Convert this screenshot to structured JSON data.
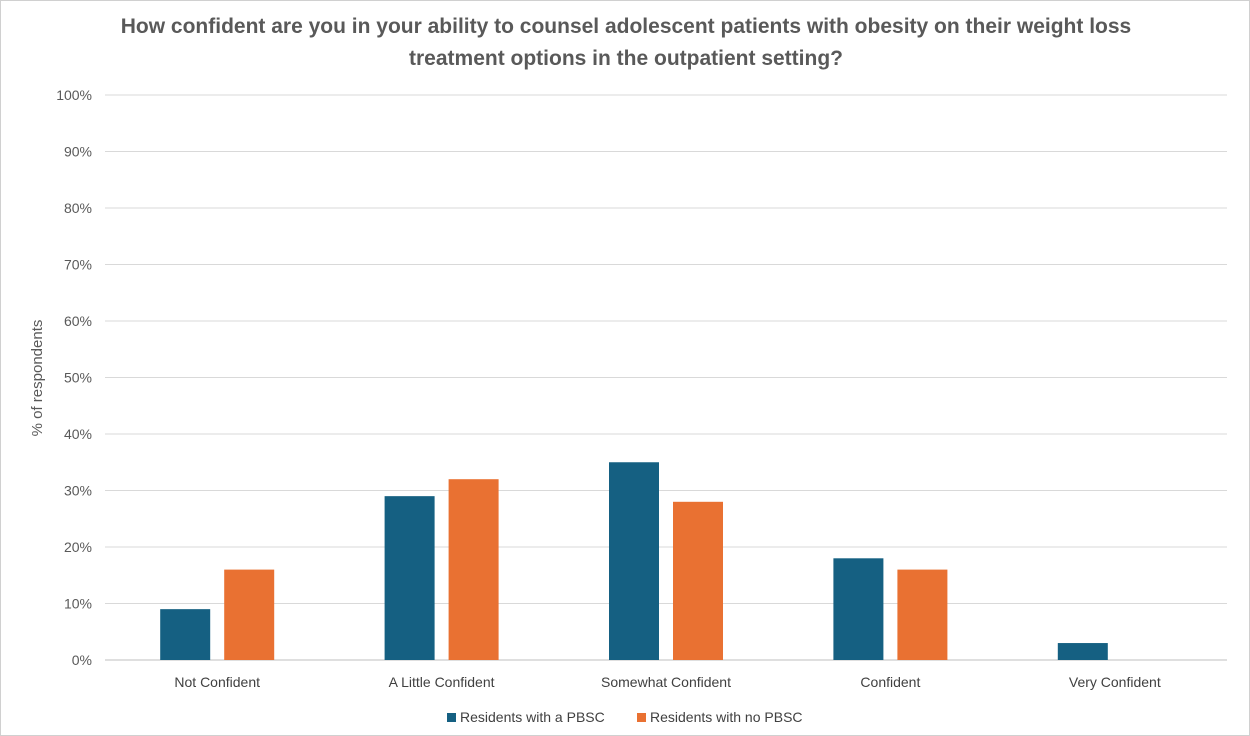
{
  "chart_data": {
    "type": "bar",
    "title": "How confident are you in your ability to counsel adolescent patients with obesity on their weight loss treatment options in the outpatient setting?",
    "xlabel": "",
    "ylabel": "% of respondents",
    "ylim": [
      0,
      100
    ],
    "yticks": [
      0,
      10,
      20,
      30,
      40,
      50,
      60,
      70,
      80,
      90,
      100
    ],
    "ytick_labels": [
      "0%",
      "10%",
      "20%",
      "30%",
      "40%",
      "50%",
      "60%",
      "70%",
      "80%",
      "90%",
      "100%"
    ],
    "categories": [
      "Not Confident",
      "A Little Confident",
      "Somewhat Confident",
      "Confident",
      "Very Confident"
    ],
    "series": [
      {
        "name": "Residents with a PBSC",
        "color": "#156082",
        "values": [
          9,
          29,
          35,
          18,
          3
        ]
      },
      {
        "name": "Residents with no PBSC",
        "color": "#E97132",
        "values": [
          16,
          32,
          28,
          16,
          0
        ]
      }
    ],
    "grid": true,
    "legend_position": "bottom"
  }
}
